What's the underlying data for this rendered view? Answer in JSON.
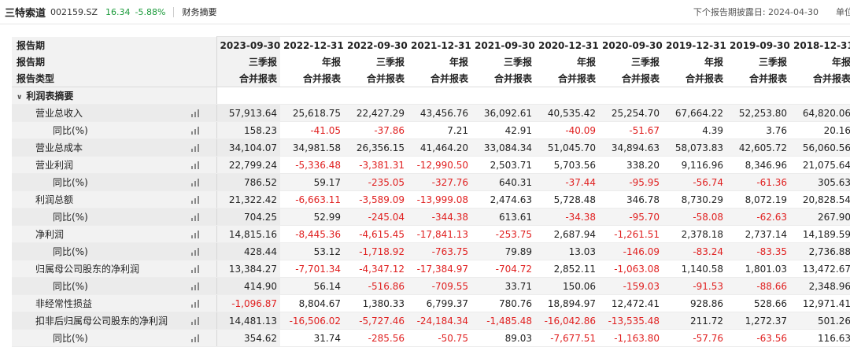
{
  "header": {
    "stock_name": "三特索道",
    "stock_code": "002159.SZ",
    "price": "16.34",
    "change": "-5.88%",
    "section": "财务摘要",
    "next_report": "下个报告期披露日: 2024-04-30",
    "unit": "单位"
  },
  "table": {
    "row_labels": {
      "period": "报告期",
      "report": "",
      "type": "报告类型"
    },
    "columns": [
      {
        "date": "2023-09-30",
        "report": "三季报",
        "type": "合并报表"
      },
      {
        "date": "2022-12-31",
        "report": "年报",
        "type": "合并报表"
      },
      {
        "date": "2022-09-30",
        "report": "三季报",
        "type": "合并报表"
      },
      {
        "date": "2021-12-31",
        "report": "年报",
        "type": "合并报表"
      },
      {
        "date": "2021-09-30",
        "report": "三季报",
        "type": "合并报表"
      },
      {
        "date": "2020-12-31",
        "report": "年报",
        "type": "合并报表"
      },
      {
        "date": "2020-09-30",
        "report": "三季报",
        "type": "合并报表"
      },
      {
        "date": "2019-12-31",
        "report": "年报",
        "type": "合并报表"
      },
      {
        "date": "2019-09-30",
        "report": "三季报",
        "type": "合并报表"
      },
      {
        "date": "2018-12-31",
        "report": "年报",
        "type": "合并报表"
      }
    ],
    "group": "利润表摘要",
    "rows": [
      {
        "label": "营业总收入",
        "level": 1,
        "values": [
          "57,913.64",
          "25,618.75",
          "22,427.29",
          "43,456.76",
          "36,092.61",
          "40,535.42",
          "25,254.70",
          "67,664.22",
          "52,253.80",
          "64,820.06"
        ]
      },
      {
        "label": "同比(%)",
        "level": 2,
        "values": [
          "158.23",
          "-41.05",
          "-37.86",
          "7.21",
          "42.91",
          "-40.09",
          "-51.67",
          "4.39",
          "3.76",
          "20.16"
        ]
      },
      {
        "label": "营业总成本",
        "level": 1,
        "values": [
          "34,104.07",
          "34,981.58",
          "26,356.15",
          "41,464.20",
          "33,084.34",
          "51,045.70",
          "34,894.63",
          "58,073.83",
          "42,605.72",
          "56,060.56"
        ]
      },
      {
        "label": "营业利润",
        "level": 1,
        "values": [
          "22,799.24",
          "-5,336.48",
          "-3,381.31",
          "-12,990.50",
          "2,503.71",
          "5,703.56",
          "338.20",
          "9,116.96",
          "8,346.96",
          "21,075.64"
        ]
      },
      {
        "label": "同比(%)",
        "level": 2,
        "values": [
          "786.52",
          "59.17",
          "-235.05",
          "-327.76",
          "640.31",
          "-37.44",
          "-95.95",
          "-56.74",
          "-61.36",
          "305.63"
        ]
      },
      {
        "label": "利润总额",
        "level": 1,
        "values": [
          "21,322.42",
          "-6,663.11",
          "-3,589.09",
          "-13,999.08",
          "2,474.63",
          "5,728.48",
          "346.78",
          "8,730.29",
          "8,072.19",
          "20,828.54"
        ]
      },
      {
        "label": "同比(%)",
        "level": 2,
        "values": [
          "704.25",
          "52.99",
          "-245.04",
          "-344.38",
          "613.61",
          "-34.38",
          "-95.70",
          "-58.08",
          "-62.63",
          "267.90"
        ]
      },
      {
        "label": "净利润",
        "level": 1,
        "values": [
          "14,815.16",
          "-8,445.36",
          "-4,615.45",
          "-17,841.13",
          "-253.75",
          "2,687.94",
          "-1,261.51",
          "2,378.18",
          "2,737.14",
          "14,189.59"
        ]
      },
      {
        "label": "同比(%)",
        "level": 2,
        "values": [
          "428.44",
          "53.12",
          "-1,718.92",
          "-763.75",
          "79.89",
          "13.03",
          "-146.09",
          "-83.24",
          "-83.35",
          "2,736.88"
        ]
      },
      {
        "label": "归属母公司股东的净利润",
        "level": 1,
        "values": [
          "13,384.27",
          "-7,701.34",
          "-4,347.12",
          "-17,384.97",
          "-704.72",
          "2,852.11",
          "-1,063.08",
          "1,140.58",
          "1,801.03",
          "13,472.67"
        ]
      },
      {
        "label": "同比(%)",
        "level": 2,
        "values": [
          "414.90",
          "56.14",
          "-516.86",
          "-709.55",
          "33.71",
          "150.06",
          "-159.03",
          "-91.53",
          "-88.66",
          "2,348.96"
        ]
      },
      {
        "label": "非经常性损益",
        "level": 1,
        "values": [
          "-1,096.87",
          "8,804.67",
          "1,380.33",
          "6,799.37",
          "780.76",
          "18,894.97",
          "12,472.41",
          "928.86",
          "528.66",
          "12,971.41"
        ]
      },
      {
        "label": "扣非后归属母公司股东的净利润",
        "level": 1,
        "values": [
          "14,481.13",
          "-16,506.02",
          "-5,727.46",
          "-24,184.34",
          "-1,485.48",
          "-16,042.86",
          "-13,535.48",
          "211.72",
          "1,272.37",
          "501.26"
        ]
      },
      {
        "label": "同比(%)",
        "level": 2,
        "values": [
          "354.62",
          "31.74",
          "-285.56",
          "-50.75",
          "89.03",
          "-7,677.51",
          "-1,163.80",
          "-57.76",
          "-63.56",
          "116.63"
        ]
      }
    ]
  },
  "colors": {
    "negative": "#e02020",
    "positive_change": "#1a9a3a"
  },
  "icons": {
    "row_chart": "bar-chart-icon",
    "group_toggle": "chevron-down-icon"
  }
}
